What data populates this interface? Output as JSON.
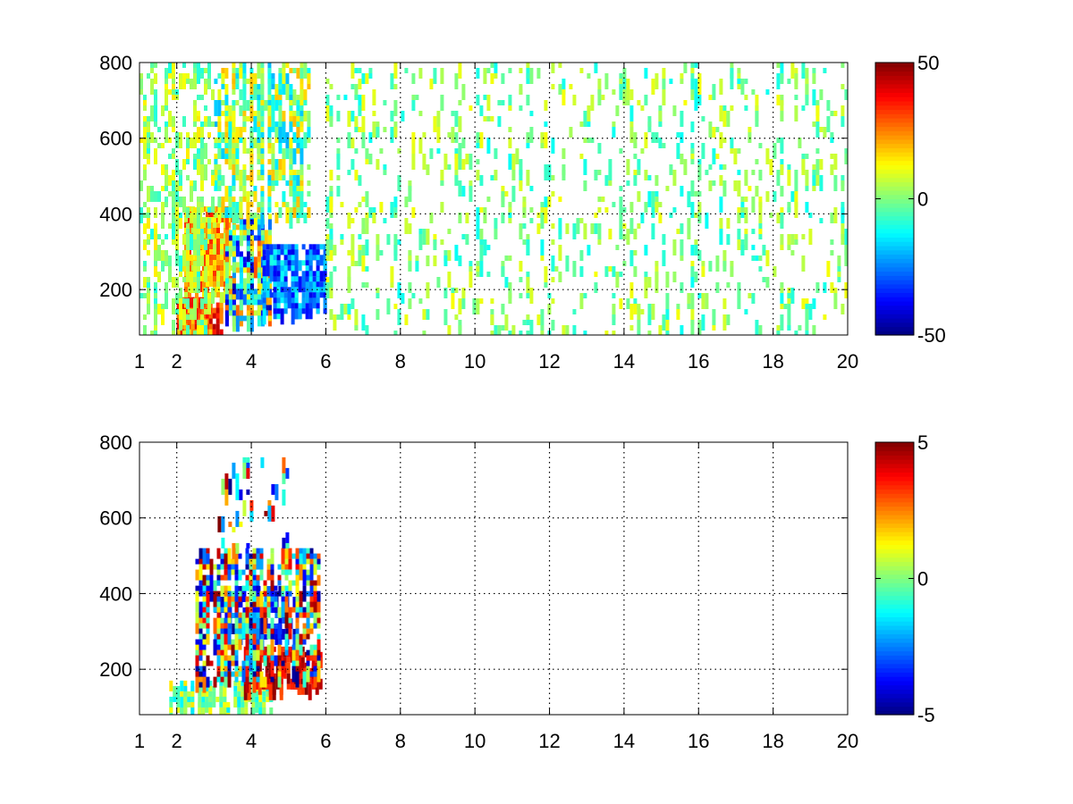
{
  "chart_data": [
    {
      "type": "heatmap",
      "title": "",
      "xlabel": "",
      "ylabel": "",
      "xlim": [
        1,
        20
      ],
      "ylim": [
        80,
        800
      ],
      "x_ticks": [
        "1",
        "2",
        "4",
        "6",
        "8",
        "10",
        "12",
        "14",
        "16",
        "18",
        "20"
      ],
      "y_ticks": [
        "200",
        "400",
        "600",
        "800"
      ],
      "colormap": "jet",
      "colorbar": {
        "min": -50,
        "max": 50,
        "ticks": [
          "50",
          "0",
          "-50"
        ]
      },
      "grid": true,
      "regions": [
        {
          "x": [
            2.0,
            3.2
          ],
          "y": [
            90,
            180
          ],
          "value_range": [
            15,
            45
          ],
          "density": 0.95
        },
        {
          "x": [
            2.2,
            3.5
          ],
          "y": [
            180,
            420
          ],
          "value_range": [
            5,
            35
          ],
          "density": 0.85
        },
        {
          "x": [
            3.3,
            4.5
          ],
          "y": [
            120,
            400
          ],
          "value_range": [
            -45,
            30
          ],
          "density": 0.85
        },
        {
          "x": [
            4.3,
            6.0
          ],
          "y": [
            150,
            320
          ],
          "value_range": [
            -40,
            -10
          ],
          "density": 0.8
        },
        {
          "x": [
            3.0,
            5.5
          ],
          "y": [
            400,
            800
          ],
          "value_range": [
            -20,
            20
          ],
          "density": 0.5
        },
        {
          "x": [
            1.0,
            3.0
          ],
          "y": [
            80,
            800
          ],
          "value_range": [
            -10,
            15
          ],
          "density": 0.3
        },
        {
          "x": [
            6.0,
            20.0
          ],
          "y": [
            80,
            800
          ],
          "value_range": [
            -12,
            12
          ],
          "density": 0.12
        }
      ]
    },
    {
      "type": "heatmap",
      "title": "",
      "xlabel": "",
      "ylabel": "",
      "xlim": [
        1,
        20
      ],
      "ylim": [
        80,
        800
      ],
      "x_ticks": [
        "1",
        "2",
        "4",
        "6",
        "8",
        "10",
        "12",
        "14",
        "16",
        "18",
        "20"
      ],
      "y_ticks": [
        "200",
        "400",
        "600",
        "800"
      ],
      "colormap": "jet",
      "colorbar": {
        "min": -5,
        "max": 5,
        "ticks": [
          "5",
          "0",
          "-5"
        ]
      },
      "grid": true,
      "regions": [
        {
          "x": [
            1.8,
            4.5
          ],
          "y": [
            90,
            170
          ],
          "value_range": [
            -1.5,
            1.5
          ],
          "density": 0.7
        },
        {
          "x": [
            3.8,
            5.9
          ],
          "y": [
            160,
            260
          ],
          "value_range": [
            3,
            5
          ],
          "density": 0.8
        },
        {
          "x": [
            3.0,
            5.2
          ],
          "y": [
            280,
            420
          ],
          "value_range": [
            -5,
            -2
          ],
          "density": 0.6
        },
        {
          "x": [
            2.5,
            5.8
          ],
          "y": [
            170,
            520
          ],
          "value_range": [
            -5,
            5
          ],
          "density": 0.5
        },
        {
          "x": [
            3.0,
            5.0
          ],
          "y": [
            520,
            760
          ],
          "value_range": [
            -5,
            5
          ],
          "density": 0.12
        }
      ]
    }
  ]
}
